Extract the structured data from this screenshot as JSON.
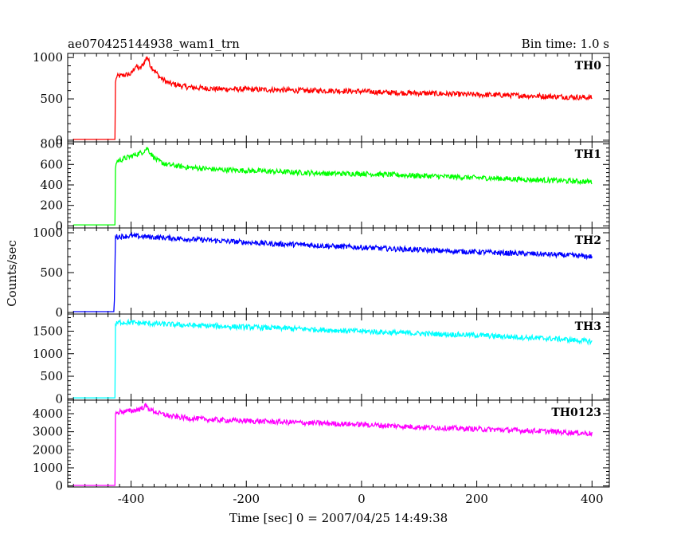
{
  "chart_data": {
    "type": "line",
    "title_left": "ae070425144938_wam1_trn",
    "title_right": "Bin time: 1.0 s",
    "xlabel": "Time [sec] 0 = 2007/04/25 14:49:38",
    "ylabel": "Counts/sec",
    "xlim": [
      -510,
      430
    ],
    "x_ticks": [
      -400,
      -200,
      0,
      200,
      400
    ],
    "grid": false,
    "panels": [
      {
        "name": "TH0",
        "color": "#ff0000",
        "ylim": [
          -20,
          1050
        ],
        "y_ticks": [
          0,
          500,
          1000
        ],
        "series": [
          [
            -500,
            10
          ],
          [
            -428,
            10
          ],
          [
            -427,
            700
          ],
          [
            -425,
            770
          ],
          [
            -410,
            790
          ],
          [
            -400,
            800
          ],
          [
            -392,
            900
          ],
          [
            -385,
            860
          ],
          [
            -378,
            930
          ],
          [
            -372,
            1010
          ],
          [
            -366,
            900
          ],
          [
            -360,
            850
          ],
          [
            -350,
            760
          ],
          [
            -335,
            690
          ],
          [
            -300,
            640
          ],
          [
            -250,
            620
          ],
          [
            -200,
            615
          ],
          [
            -150,
            610
          ],
          [
            -100,
            600
          ],
          [
            -50,
            600
          ],
          [
            0,
            590
          ],
          [
            50,
            575
          ],
          [
            100,
            570
          ],
          [
            150,
            560
          ],
          [
            200,
            550
          ],
          [
            250,
            545
          ],
          [
            300,
            535
          ],
          [
            350,
            525
          ],
          [
            400,
            515
          ]
        ]
      },
      {
        "name": "TH1",
        "color": "#00ff00",
        "ylim": [
          -20,
          820
        ],
        "y_ticks": [
          0,
          200,
          400,
          600,
          800
        ],
        "series": [
          [
            -500,
            10
          ],
          [
            -428,
            10
          ],
          [
            -427,
            560
          ],
          [
            -425,
            630
          ],
          [
            -410,
            660
          ],
          [
            -400,
            680
          ],
          [
            -390,
            700
          ],
          [
            -380,
            720
          ],
          [
            -372,
            760
          ],
          [
            -365,
            700
          ],
          [
            -355,
            640
          ],
          [
            -340,
            600
          ],
          [
            -300,
            570
          ],
          [
            -250,
            550
          ],
          [
            -200,
            540
          ],
          [
            -150,
            530
          ],
          [
            -100,
            520
          ],
          [
            -50,
            510
          ],
          [
            0,
            510
          ],
          [
            50,
            500
          ],
          [
            100,
            490
          ],
          [
            150,
            480
          ],
          [
            200,
            470
          ],
          [
            250,
            460
          ],
          [
            300,
            450
          ],
          [
            350,
            440
          ],
          [
            400,
            430
          ]
        ]
      },
      {
        "name": "TH2",
        "color": "#0000ff",
        "ylim": [
          -20,
          1060
        ],
        "y_ticks": [
          0,
          500,
          1000
        ],
        "series": [
          [
            -500,
            10
          ],
          [
            -430,
            10
          ],
          [
            -429,
            150
          ],
          [
            -427,
            950
          ],
          [
            -400,
            960
          ],
          [
            -350,
            940
          ],
          [
            -300,
            920
          ],
          [
            -250,
            900
          ],
          [
            -200,
            880
          ],
          [
            -150,
            860
          ],
          [
            -100,
            850
          ],
          [
            -50,
            830
          ],
          [
            0,
            815
          ],
          [
            50,
            800
          ],
          [
            100,
            785
          ],
          [
            150,
            770
          ],
          [
            200,
            760
          ],
          [
            250,
            745
          ],
          [
            300,
            735
          ],
          [
            350,
            720
          ],
          [
            400,
            700
          ]
        ]
      },
      {
        "name": "TH3",
        "color": "#00ffff",
        "ylim": [
          -30,
          1880
        ],
        "y_ticks": [
          0,
          500,
          1000,
          1500
        ],
        "series": [
          [
            -500,
            20
          ],
          [
            -428,
            20
          ],
          [
            -427,
            1650
          ],
          [
            -420,
            1700
          ],
          [
            -400,
            1690
          ],
          [
            -350,
            1660
          ],
          [
            -300,
            1630
          ],
          [
            -250,
            1610
          ],
          [
            -200,
            1590
          ],
          [
            -150,
            1570
          ],
          [
            -100,
            1550
          ],
          [
            -50,
            1520
          ],
          [
            0,
            1500
          ],
          [
            50,
            1470
          ],
          [
            100,
            1450
          ],
          [
            150,
            1430
          ],
          [
            200,
            1410
          ],
          [
            250,
            1380
          ],
          [
            300,
            1350
          ],
          [
            350,
            1320
          ],
          [
            400,
            1270
          ]
        ]
      },
      {
        "name": "TH0123",
        "color": "#ff00ff",
        "ylim": [
          -60,
          4750
        ],
        "y_ticks": [
          0,
          1000,
          2000,
          3000,
          4000
        ],
        "series": [
          [
            -500,
            30
          ],
          [
            -428,
            30
          ],
          [
            -427,
            4000
          ],
          [
            -420,
            4100
          ],
          [
            -400,
            4150
          ],
          [
            -385,
            4250
          ],
          [
            -375,
            4420
          ],
          [
            -365,
            4200
          ],
          [
            -350,
            4000
          ],
          [
            -330,
            3850
          ],
          [
            -300,
            3750
          ],
          [
            -250,
            3650
          ],
          [
            -200,
            3600
          ],
          [
            -150,
            3550
          ],
          [
            -100,
            3500
          ],
          [
            -50,
            3450
          ],
          [
            0,
            3400
          ],
          [
            50,
            3330
          ],
          [
            100,
            3260
          ],
          [
            150,
            3200
          ],
          [
            200,
            3150
          ],
          [
            250,
            3100
          ],
          [
            300,
            3050
          ],
          [
            350,
            2980
          ],
          [
            400,
            2900
          ]
        ]
      }
    ]
  }
}
